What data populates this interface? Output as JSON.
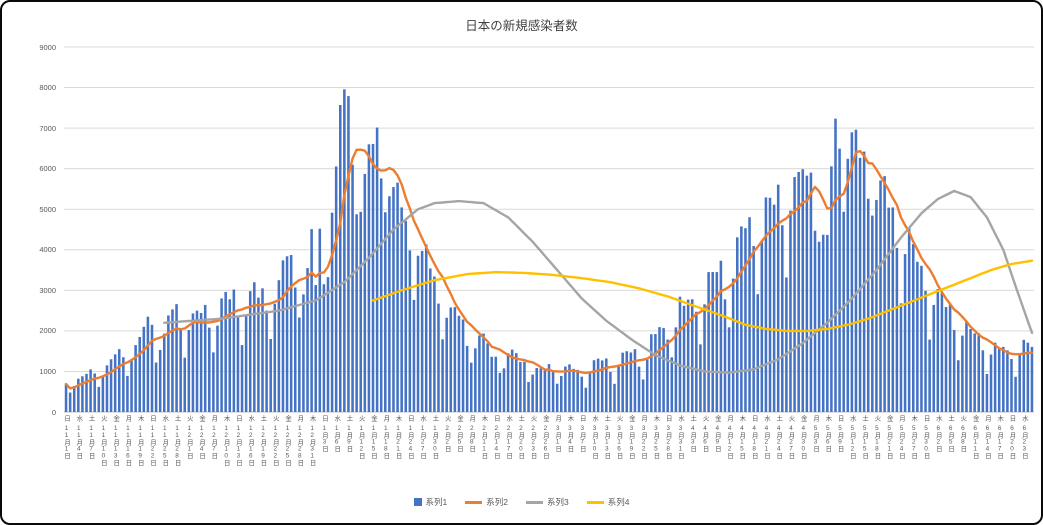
{
  "title": "日本の新規感染者数",
  "chart_data": {
    "type": "combo",
    "title": "日本の新規感染者数",
    "xlabel": "",
    "ylabel": "",
    "ylim": [
      0,
      9000
    ],
    "y_ticks": [
      0,
      1000,
      2000,
      3000,
      4000,
      5000,
      6000,
      7000,
      8000,
      9000
    ],
    "grid": true,
    "legend_position": "bottom",
    "x_tick_step": 3,
    "x_tick_labels": [
      [
        "日",
        "11月1日"
      ],
      [
        "水",
        "11月4日"
      ],
      [
        "土",
        "11月7日"
      ],
      [
        "火",
        "11月10日"
      ],
      [
        "金",
        "11月13日"
      ],
      [
        "月",
        "11月16日"
      ],
      [
        "木",
        "11月19日"
      ],
      [
        "日",
        "11月22日"
      ],
      [
        "水",
        "11月25日"
      ],
      [
        "土",
        "11月28日"
      ],
      [
        "火",
        "12月1日"
      ],
      [
        "金",
        "12月4日"
      ],
      [
        "月",
        "12月7日"
      ],
      [
        "木",
        "12月10日"
      ],
      [
        "日",
        "12月13日"
      ],
      [
        "水",
        "12月16日"
      ],
      [
        "土",
        "12月19日"
      ],
      [
        "火",
        "12月22日"
      ],
      [
        "金",
        "12月25日"
      ],
      [
        "月",
        "12月28日"
      ],
      [
        "木",
        "12月31日"
      ],
      [
        "日",
        "1月3日"
      ],
      [
        "水",
        "1月6日"
      ],
      [
        "土",
        "1月9日"
      ],
      [
        "火",
        "1月12日"
      ],
      [
        "金",
        "1月15日"
      ],
      [
        "月",
        "1月18日"
      ],
      [
        "木",
        "1月21日"
      ],
      [
        "日",
        "1月24日"
      ],
      [
        "水",
        "1月27日"
      ],
      [
        "土",
        "1月30日"
      ],
      [
        "火",
        "2月2日"
      ],
      [
        "金",
        "2月5日"
      ],
      [
        "月",
        "2月8日"
      ],
      [
        "木",
        "2月11日"
      ],
      [
        "日",
        "2月14日"
      ],
      [
        "水",
        "2月17日"
      ],
      [
        "土",
        "2月20日"
      ],
      [
        "火",
        "2月23日"
      ],
      [
        "金",
        "2月26日"
      ],
      [
        "月",
        "3月1日"
      ],
      [
        "木",
        "3月4日"
      ],
      [
        "日",
        "3月7日"
      ],
      [
        "水",
        "3月10日"
      ],
      [
        "土",
        "3月13日"
      ],
      [
        "火",
        "3月16日"
      ],
      [
        "金",
        "3月19日"
      ],
      [
        "月",
        "3月22日"
      ],
      [
        "木",
        "3月25日"
      ],
      [
        "日",
        "3月28日"
      ],
      [
        "水",
        "3月31日"
      ],
      [
        "土",
        "4月3日"
      ],
      [
        "火",
        "4月6日"
      ],
      [
        "金",
        "4月9日"
      ],
      [
        "月",
        "4月12日"
      ],
      [
        "木",
        "4月15日"
      ],
      [
        "日",
        "4月18日"
      ],
      [
        "水",
        "4月21日"
      ],
      [
        "土",
        "4月24日"
      ],
      [
        "火",
        "4月27日"
      ],
      [
        "金",
        "4月30日"
      ],
      [
        "月",
        "5月3日"
      ],
      [
        "木",
        "5月6日"
      ],
      [
        "日",
        "5月9日"
      ],
      [
        "水",
        "5月12日"
      ],
      [
        "土",
        "5月15日"
      ],
      [
        "火",
        "5月18日"
      ],
      [
        "金",
        "5月21日"
      ],
      [
        "月",
        "5月24日"
      ],
      [
        "木",
        "5月27日"
      ],
      [
        "日",
        "5月30日"
      ],
      [
        "水",
        "6月2日"
      ],
      [
        "土",
        "6月5日"
      ],
      [
        "火",
        "6月8日"
      ],
      [
        "金",
        "6月11日"
      ],
      [
        "月",
        "6月14日"
      ],
      [
        "木",
        "6月17日"
      ],
      [
        "日",
        "6月20日"
      ],
      [
        "水",
        "6月23日"
      ]
    ],
    "series": [
      {
        "name": "系列1",
        "type": "bar",
        "color": "#4472C4",
        "values": [
          690,
          480,
          640,
          820,
          880,
          940,
          1050,
          950,
          620,
          900,
          1150,
          1300,
          1420,
          1550,
          1350,
          890,
          1300,
          1650,
          1850,
          2100,
          2350,
          2150,
          1220,
          1530,
          1930,
          2380,
          2530,
          2660,
          2050,
          1340,
          2020,
          2430,
          2500,
          2440,
          2640,
          2080,
          1470,
          2130,
          2800,
          2960,
          2780,
          3020,
          2370,
          1650,
          2400,
          2980,
          3200,
          2820,
          3050,
          2500,
          1800,
          2670,
          3250,
          3740,
          3840,
          3870,
          3070,
          2330,
          2900,
          3550,
          4510,
          3130,
          4520,
          3150,
          3325,
          4915,
          6055,
          7570,
          7957,
          7790,
          6097,
          4875,
          4936,
          5870,
          6600,
          6610,
          7014,
          5760,
          4925,
          5320,
          5545,
          5655,
          5045,
          4710,
          3985,
          2764,
          3853,
          3971,
          4133,
          3539,
          3340,
          2673,
          1792,
          2324,
          2577,
          2585,
          2372,
          2281,
          1630,
          1216,
          1570,
          1887,
          1934,
          1693,
          1362,
          1364,
          965,
          1076,
          1448,
          1538,
          1451,
          1234,
          1238,
          739,
          922,
          1084,
          1076,
          1046,
          1180,
          999,
          697,
          888,
          1121,
          1174,
          1064,
          1038,
          871,
          599,
          973,
          1277,
          1316,
          1271,
          1320,
          988,
          695,
          1133,
          1463,
          1499,
          1467,
          1549,
          1119,
          803,
          1292,
          1917,
          1922,
          2093,
          2070,
          1785,
          1348,
          2087,
          2843,
          2620,
          2770,
          2780,
          2472,
          1668,
          2654,
          3450,
          3452,
          3450,
          3730,
          2778,
          2088,
          3290,
          4307,
          4576,
          4532,
          4802,
          4093,
          2905,
          4224,
          5291,
          5283,
          5113,
          5605,
          4605,
          3318,
          4965,
          5793,
          5918,
          5986,
          5827,
          5903,
          4469,
          4199,
          4370,
          4366,
          6058,
          7234,
          6494,
          4938,
          6243,
          6896,
          6961,
          6267,
          6421,
          5259,
          4843,
          5229,
          5709,
          5816,
          5040,
          5044,
          4046,
          2679,
          3894,
          4532,
          4139,
          3704,
          3604,
          2987,
          1785,
          2640,
          3031,
          2954,
          2590,
          2650,
          2021,
          1276,
          1884,
          2242,
          2047,
          1937,
          1941,
          1521,
          937,
          1418,
          1709,
          1554,
          1605,
          1521,
          1307,
          868,
          1435,
          1779,
          1709,
          1605
        ]
      },
      {
        "name": "系列2",
        "type": "line",
        "color": "#ED7D31",
        "derivation": "7-day moving average of 系列1"
      },
      {
        "name": "系列3",
        "type": "line",
        "color": "#A5A5A5",
        "anchors": [
          [
            24,
            2200
          ],
          [
            38,
            2300
          ],
          [
            52,
            2500
          ],
          [
            61,
            2750
          ],
          [
            68,
            3200
          ],
          [
            74,
            3800
          ],
          [
            80,
            4500
          ],
          [
            86,
            5000
          ],
          [
            90,
            5150
          ],
          [
            96,
            5200
          ],
          [
            102,
            5150
          ],
          [
            108,
            4800
          ],
          [
            114,
            4200
          ],
          [
            120,
            3500
          ],
          [
            126,
            2800
          ],
          [
            132,
            2250
          ],
          [
            138,
            1800
          ],
          [
            144,
            1400
          ],
          [
            150,
            1150
          ],
          [
            156,
            1000
          ],
          [
            162,
            970
          ],
          [
            168,
            1050
          ],
          [
            174,
            1300
          ],
          [
            180,
            1700
          ],
          [
            186,
            2200
          ],
          [
            192,
            2800
          ],
          [
            198,
            3500
          ],
          [
            204,
            4300
          ],
          [
            209,
            4900
          ],
          [
            213,
            5250
          ],
          [
            217,
            5450
          ],
          [
            221,
            5300
          ],
          [
            225,
            4800
          ],
          [
            229,
            4000
          ],
          [
            232,
            3100
          ],
          [
            236,
            1950
          ]
        ]
      },
      {
        "name": "系列4",
        "type": "line",
        "color": "#FFC000",
        "anchors": [
          [
            75,
            2750
          ],
          [
            82,
            3000
          ],
          [
            90,
            3250
          ],
          [
            98,
            3400
          ],
          [
            105,
            3450
          ],
          [
            112,
            3430
          ],
          [
            119,
            3380
          ],
          [
            126,
            3300
          ],
          [
            133,
            3200
          ],
          [
            140,
            3050
          ],
          [
            147,
            2850
          ],
          [
            154,
            2600
          ],
          [
            161,
            2350
          ],
          [
            166,
            2150
          ],
          [
            171,
            2050
          ],
          [
            176,
            2000
          ],
          [
            181,
            2000
          ],
          [
            186,
            2050
          ],
          [
            191,
            2150
          ],
          [
            196,
            2300
          ],
          [
            201,
            2500
          ],
          [
            206,
            2700
          ],
          [
            211,
            2900
          ],
          [
            216,
            3100
          ],
          [
            221,
            3300
          ],
          [
            226,
            3500
          ],
          [
            231,
            3650
          ],
          [
            236,
            3730
          ]
        ]
      }
    ]
  },
  "legend": {
    "series1": "系列1",
    "series2": "系列2",
    "series3": "系列3",
    "series4": "系列4"
  }
}
